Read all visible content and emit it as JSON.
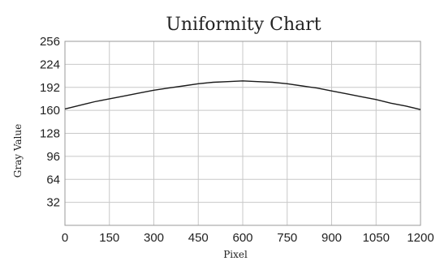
{
  "chart_data": {
    "type": "line",
    "title": "Uniformity Chart",
    "xlabel": "Pixel",
    "ylabel": "Gray Value",
    "xlim": [
      0,
      1200
    ],
    "ylim": [
      0,
      256
    ],
    "xticks": [
      0,
      150,
      300,
      450,
      600,
      750,
      900,
      1050,
      1200
    ],
    "yticks": [
      32,
      64,
      96,
      128,
      160,
      192,
      224,
      256
    ],
    "grid": true,
    "legend": "none",
    "series": [
      {
        "color": "#1a1a1a",
        "x": [
          0,
          50,
          100,
          150,
          200,
          250,
          300,
          350,
          400,
          450,
          500,
          550,
          600,
          650,
          700,
          750,
          800,
          850,
          900,
          950,
          1000,
          1050,
          1100,
          1150,
          1200
        ],
        "y": [
          162,
          167,
          172,
          176,
          180,
          184,
          188,
          191,
          194,
          197,
          199,
          200,
          201,
          200,
          199,
          197,
          194,
          191,
          187,
          183,
          179,
          175,
          170,
          166,
          161
        ]
      }
    ]
  }
}
